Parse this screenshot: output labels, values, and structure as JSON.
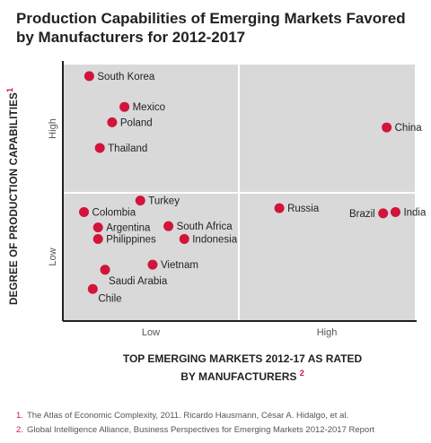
{
  "title": {
    "line1": "Production Capabilities of Emerging Markets Favored",
    "line2": "by Manufacturers for 2012-2017"
  },
  "axes": {
    "ylabel": "DEGREE OF PRODUCTION CAPABILITIES",
    "ylabel_note": "1",
    "xlabel_line1": "TOP EMERGING MARKETS 2012-17 AS RATED",
    "xlabel_line2": "BY MANUFACTURERS",
    "xlabel_note": "2"
  },
  "footnotes": [
    {
      "num": "1.",
      "text": "The Atlas of Economic Complexity, 2011. Ricardo Hausmann, César A. Hidalgo, et al."
    },
    {
      "num": "2.",
      "text": "Global Intelligence Alliance, Business Perspectives for Emerging Markets 2012-2017 Report"
    }
  ],
  "colors": {
    "marker": "#d2143a",
    "quadrant_bg": "#d9d9da",
    "divider": "#ffffff",
    "axis": "#231f20",
    "tick_text": "#555555"
  },
  "chart_data": {
    "type": "scatter",
    "xlim": [
      0,
      2
    ],
    "ylim": [
      0,
      2
    ],
    "x_ticks": [
      {
        "value": 0.5,
        "label": "Low"
      },
      {
        "value": 1.5,
        "label": "High"
      }
    ],
    "y_ticks": [
      {
        "value": 0.5,
        "label": "Low"
      },
      {
        "value": 1.5,
        "label": "High"
      }
    ],
    "grid": false,
    "points": [
      {
        "name": "South Korea",
        "x": 0.15,
        "y": 1.91
      },
      {
        "name": "Mexico",
        "x": 0.35,
        "y": 1.67
      },
      {
        "name": "Poland",
        "x": 0.28,
        "y": 1.55
      },
      {
        "name": "Thailand",
        "x": 0.21,
        "y": 1.35
      },
      {
        "name": "China",
        "x": 1.84,
        "y": 1.51
      },
      {
        "name": "Turkey",
        "x": 0.44,
        "y": 0.94
      },
      {
        "name": "Colombia",
        "x": 0.12,
        "y": 0.85
      },
      {
        "name": "Russia",
        "x": 1.23,
        "y": 0.88
      },
      {
        "name": "Brazil",
        "x": 1.82,
        "y": 0.84
      },
      {
        "name": "India",
        "x": 1.89,
        "y": 0.85
      },
      {
        "name": "Argentina",
        "x": 0.2,
        "y": 0.73
      },
      {
        "name": "South Africa",
        "x": 0.6,
        "y": 0.74
      },
      {
        "name": "Philippines",
        "x": 0.2,
        "y": 0.64
      },
      {
        "name": "Indonesia",
        "x": 0.69,
        "y": 0.64
      },
      {
        "name": "Vietnam",
        "x": 0.51,
        "y": 0.44
      },
      {
        "name": "Saudi Arabia",
        "x": 0.24,
        "y": 0.4
      },
      {
        "name": "Chile",
        "x": 0.17,
        "y": 0.25
      }
    ]
  }
}
